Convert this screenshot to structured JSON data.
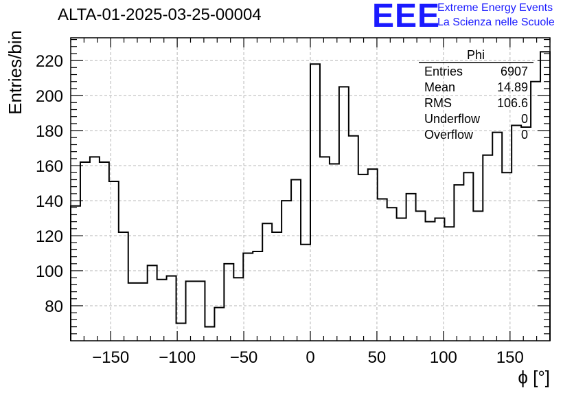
{
  "title": "ALTA-01-2025-03-25-00004",
  "logo": {
    "mark": "EEE",
    "line1": "Extreme Energy Events",
    "line2": "La Scienza nelle Scuole",
    "color": "#1a1aff"
  },
  "stats": {
    "name": "Phi",
    "rows": [
      {
        "label": "Entries",
        "value": "6907"
      },
      {
        "label": "Mean",
        "value": "14.89"
      },
      {
        "label": "RMS",
        "value": "106.6"
      },
      {
        "label": "Underflow",
        "value": "0"
      },
      {
        "label": "Overflow",
        "value": "0"
      }
    ]
  },
  "chart_data": {
    "type": "histogram",
    "xlabel": "ϕ [°]",
    "ylabel": "Entries/bin",
    "xlim": [
      -180,
      180
    ],
    "ylim": [
      60,
      233
    ],
    "grid": true,
    "bin_edges_start": -180,
    "bin_width": 7.2,
    "values": [
      137,
      162,
      165,
      162,
      151,
      122,
      93,
      93,
      103,
      95,
      97,
      70,
      94,
      94,
      68,
      79,
      104,
      96,
      110,
      111,
      127,
      122,
      140,
      152,
      115,
      218,
      165,
      161,
      205,
      177,
      155,
      158,
      141,
      136,
      130,
      144,
      134,
      128,
      130,
      125,
      149,
      156,
      134,
      166,
      179,
      156,
      183,
      182,
      208,
      225
    ],
    "x_ticks": [
      -150,
      -100,
      -50,
      0,
      50,
      100,
      150
    ],
    "x_tick_labels": [
      "−150",
      "−100",
      "−50",
      "0",
      "50",
      "100",
      "150"
    ],
    "y_ticks": [
      80,
      100,
      120,
      140,
      160,
      180,
      200,
      220
    ],
    "y_tick_labels": [
      "80",
      "100",
      "120",
      "140",
      "160",
      "180",
      "200",
      "220"
    ]
  }
}
